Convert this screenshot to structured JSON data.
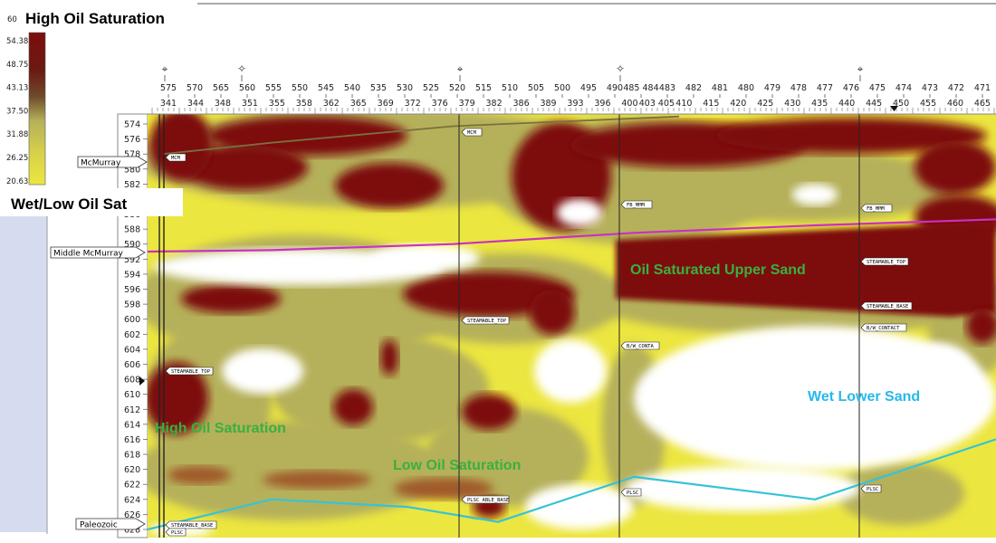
{
  "colors": {
    "high": "#7d0d0d",
    "mid_high": "#a05a2a",
    "mid": "#b5b05a",
    "low": "#ece640",
    "wet": "#ffffff",
    "middle_mcmurray_line": "#cc2ec4",
    "mcmurray_line": "#7a7040",
    "paleozoic_line": "#36c3d8",
    "green_text": "#38b13f",
    "cyan_text": "#28b8e8",
    "left_panel": "#d6dcef"
  },
  "header": {
    "high_label": "High Oil Saturation",
    "low_label": "Wet/Low Oil Sat"
  },
  "colorbar": {
    "top_label": "60",
    "ticks": [
      "54.38",
      "48.75",
      "43.13",
      "37.50",
      "31.88",
      "26.25",
      "20.63"
    ]
  },
  "well_symbols": [
    "⌖",
    "✧",
    "⌖",
    "✧",
    "⌖"
  ],
  "formations": {
    "mcmurray": "McMurray",
    "middle_mcmurray": "Middle McMurray",
    "paleozoic": "Paleozoic"
  },
  "markers": {
    "mcm": "MCM",
    "fb_mmm": "FB_MMM",
    "steamable_top": "STEAMABLE_TOP",
    "steamable_base": "STEAMABLE_BASE",
    "bw_conta": "B/W_CONTA",
    "bw_contact": "B/W_CONTACT",
    "plsc": "PLSC",
    "plsc_base": "PLSC ABLE_BASE"
  },
  "annotations": {
    "oil_upper": "Oil Saturated Upper Sand",
    "high_oil": "High Oil Saturation",
    "low_oil": "Low Oil Saturation",
    "wet_lower": "Wet Lower Sand"
  },
  "chart_data": {
    "type": "heatmap",
    "title": "",
    "value_range": [
      20.63,
      60
    ],
    "x_axis_top_row": [
      "575",
      "570",
      "565",
      "560",
      "555",
      "550",
      "545",
      "540",
      "535",
      "530",
      "525",
      "520",
      "515",
      "510",
      "505",
      "500",
      "495",
      "490",
      "485 484",
      "483",
      "482",
      "481",
      "480",
      "479",
      "478",
      "477",
      "476",
      "475",
      "474",
      "473",
      "472",
      "471"
    ],
    "x_axis_bottom_row": [
      "341",
      "344",
      "348",
      "351",
      "355",
      "358",
      "362",
      "365",
      "369",
      "372",
      "376",
      "379",
      "382",
      "386",
      "389",
      "393",
      "396",
      "400",
      "403 405",
      "410",
      "415",
      "420",
      "425",
      "430",
      "435",
      "440",
      "445",
      "450",
      "455",
      "460",
      "465"
    ],
    "y_axis_ticks": [
      "574",
      "576",
      "578",
      "580",
      "582",
      "584",
      "586",
      "588",
      "590",
      "592",
      "594",
      "596",
      "598",
      "600",
      "602",
      "604",
      "606",
      "608",
      "610",
      "612",
      "614",
      "616",
      "618",
      "620",
      "622",
      "624",
      "626",
      "628"
    ],
    "ylim": [
      573,
      629
    ],
    "horizons": [
      {
        "name": "McMurray",
        "depths": [
          578,
          576.5,
          574.3,
          573
        ]
      },
      {
        "name": "Middle McMurray",
        "depths": [
          591,
          590.8,
          590,
          588.5,
          587.5,
          586.7
        ]
      },
      {
        "name": "Paleozoic",
        "depths": [
          628,
          624,
          625,
          627,
          621,
          624,
          616
        ]
      }
    ],
    "zones": [
      {
        "label": "Oil Saturated Upper Sand",
        "saturation": "high",
        "depth_range": [
          588,
          600
        ]
      },
      {
        "label": "High Oil Saturation",
        "saturation": "high",
        "depth_range": [
          609,
          616
        ]
      },
      {
        "label": "Low Oil Saturation",
        "saturation": "low",
        "depth_range": [
          618,
          624
        ]
      },
      {
        "label": "Wet Lower Sand",
        "saturation": "wet",
        "depth_range": [
          600,
          620
        ]
      }
    ]
  }
}
